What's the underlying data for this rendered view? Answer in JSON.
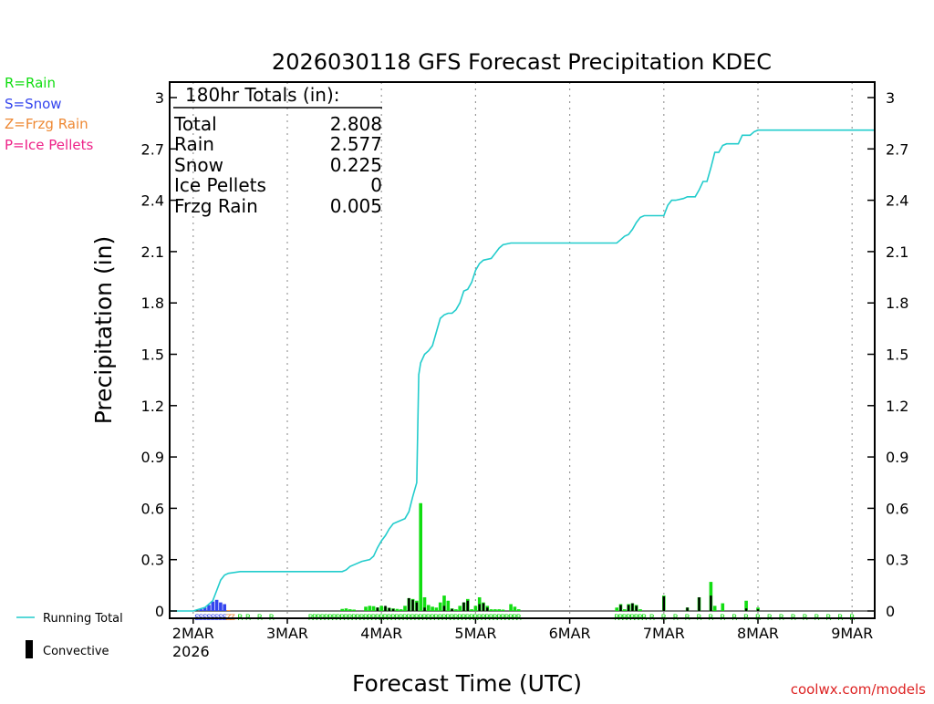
{
  "chart_data": {
    "type": "bar",
    "title": "2026030118 GFS Forecast Precipitation KDEC",
    "xlabel": "Forecast Time (UTC)",
    "ylabel": "Precipitation (in)",
    "ylim": [
      0,
      3
    ],
    "xlim_hours": [
      -6,
      180
    ],
    "yticks": [
      "0",
      "0.3",
      "0.6",
      "0.9",
      "1.2",
      "1.5",
      "1.8",
      "2.1",
      "2.4",
      "2.7",
      "3"
    ],
    "xticks": [
      {
        "label": "2MAR",
        "hour": 0
      },
      {
        "label": "3MAR",
        "hour": 24
      },
      {
        "label": "4MAR",
        "hour": 48
      },
      {
        "label": "5MAR",
        "hour": 72
      },
      {
        "label": "6MAR",
        "hour": 96
      },
      {
        "label": "7MAR",
        "hour": 120
      },
      {
        "label": "8MAR",
        "hour": 144
      },
      {
        "label": "9MAR",
        "hour": 168
      }
    ],
    "year_label": "2026",
    "legend_types": [
      {
        "text": "R=Rain",
        "color": "#11dd11"
      },
      {
        "text": "S=Snow",
        "color": "#3344ee"
      },
      {
        "text": "Z=Frzg Rain",
        "color": "#ee8833"
      },
      {
        "text": "P=Ice Pellets",
        "color": "#ee2288"
      }
    ],
    "legend_series": {
      "running_total": "Running Total",
      "convective": "Convective"
    },
    "totals": {
      "header": "180hr Totals (in):",
      "rows": [
        {
          "label": "Total",
          "value": "2.808"
        },
        {
          "label": "Rain",
          "value": "2.577"
        },
        {
          "label": "Snow",
          "value": "0.225"
        },
        {
          "label": "Ice Pellets",
          "value": "0"
        },
        {
          "label": "Frzg Rain",
          "value": "0.005"
        }
      ]
    },
    "credit": "coolwx.com/models",
    "running_total": {
      "name": "Running Total",
      "color": "#22cccc",
      "points": [
        [
          -6,
          0
        ],
        [
          0,
          0
        ],
        [
          3,
          0.02
        ],
        [
          5,
          0.06
        ],
        [
          6,
          0.12
        ],
        [
          7,
          0.18
        ],
        [
          8,
          0.21
        ],
        [
          9,
          0.22
        ],
        [
          12,
          0.23
        ],
        [
          21,
          0.23
        ],
        [
          30,
          0.23
        ],
        [
          38,
          0.23
        ],
        [
          39,
          0.24
        ],
        [
          40,
          0.26
        ],
        [
          41,
          0.27
        ],
        [
          43,
          0.29
        ],
        [
          45,
          0.3
        ],
        [
          46,
          0.32
        ],
        [
          47,
          0.37
        ],
        [
          48,
          0.41
        ],
        [
          49,
          0.44
        ],
        [
          50,
          0.48
        ],
        [
          51,
          0.51
        ],
        [
          52,
          0.52
        ],
        [
          54,
          0.54
        ],
        [
          55,
          0.58
        ],
        [
          56,
          0.67
        ],
        [
          57,
          0.75
        ],
        [
          57.5,
          1.38
        ],
        [
          58,
          1.45
        ],
        [
          59,
          1.5
        ],
        [
          60,
          1.52
        ],
        [
          61,
          1.55
        ],
        [
          62,
          1.63
        ],
        [
          63,
          1.71
        ],
        [
          64,
          1.73
        ],
        [
          65,
          1.74
        ],
        [
          66,
          1.74
        ],
        [
          67,
          1.76
        ],
        [
          68,
          1.8
        ],
        [
          69,
          1.87
        ],
        [
          70,
          1.88
        ],
        [
          71,
          1.92
        ],
        [
          72,
          1.99
        ],
        [
          73,
          2.03
        ],
        [
          74,
          2.05
        ],
        [
          76,
          2.06
        ],
        [
          77,
          2.09
        ],
        [
          78,
          2.12
        ],
        [
          79,
          2.14
        ],
        [
          81,
          2.15
        ],
        [
          95,
          2.15
        ],
        [
          105,
          2.15
        ],
        [
          108,
          2.15
        ],
        [
          109,
          2.17
        ],
        [
          110,
          2.19
        ],
        [
          111,
          2.2
        ],
        [
          112,
          2.23
        ],
        [
          113,
          2.27
        ],
        [
          114,
          2.3
        ],
        [
          115,
          2.31
        ],
        [
          120,
          2.31
        ],
        [
          121,
          2.37
        ],
        [
          122,
          2.4
        ],
        [
          123,
          2.4
        ],
        [
          125,
          2.41
        ],
        [
          126,
          2.42
        ],
        [
          128,
          2.42
        ],
        [
          129,
          2.46
        ],
        [
          130,
          2.51
        ],
        [
          131,
          2.51
        ],
        [
          132,
          2.59
        ],
        [
          133,
          2.68
        ],
        [
          134,
          2.68
        ],
        [
          135,
          2.72
        ],
        [
          136,
          2.73
        ],
        [
          139,
          2.73
        ],
        [
          140,
          2.78
        ],
        [
          141,
          2.78
        ],
        [
          142,
          2.78
        ],
        [
          143,
          2.8
        ],
        [
          144,
          2.81
        ],
        [
          155,
          2.81
        ],
        [
          168,
          2.81
        ],
        [
          174,
          2.81
        ]
      ]
    },
    "bars": [
      {
        "hour": 2,
        "value": 0.01,
        "type": "S"
      },
      {
        "hour": 3,
        "value": 0.02,
        "type": "S"
      },
      {
        "hour": 4,
        "value": 0.035,
        "type": "S"
      },
      {
        "hour": 5,
        "value": 0.055,
        "type": "S"
      },
      {
        "hour": 6,
        "value": 0.065,
        "type": "S"
      },
      {
        "hour": 7,
        "value": 0.05,
        "type": "S"
      },
      {
        "hour": 8,
        "value": 0.04,
        "type": "S"
      },
      {
        "hour": 9,
        "value": 0.005,
        "type": "Z"
      },
      {
        "hour": 38,
        "value": 0.012,
        "type": "R"
      },
      {
        "hour": 39,
        "value": 0.015,
        "type": "R"
      },
      {
        "hour": 40,
        "value": 0.01,
        "type": "R"
      },
      {
        "hour": 41,
        "value": 0.008,
        "type": "R"
      },
      {
        "hour": 44,
        "value": 0.025,
        "type": "R"
      },
      {
        "hour": 45,
        "value": 0.03,
        "type": "R"
      },
      {
        "hour": 46,
        "value": 0.028,
        "type": "R"
      },
      {
        "hour": 47,
        "value": 0.02,
        "type": "R"
      },
      {
        "hour": 48,
        "value": 0.03,
        "type": "R"
      },
      {
        "hour": 49,
        "value": 0.025,
        "type": "R"
      },
      {
        "hour": 50,
        "value": 0.018,
        "type": "R"
      },
      {
        "hour": 51,
        "value": 0.015,
        "type": "R"
      },
      {
        "hour": 52,
        "value": 0.012,
        "type": "R"
      },
      {
        "hour": 53,
        "value": 0.01,
        "type": "R"
      },
      {
        "hour": 54,
        "value": 0.03,
        "type": "R"
      },
      {
        "hour": 55,
        "value": 0.075,
        "type": "R"
      },
      {
        "hour": 56,
        "value": 0.07,
        "type": "R"
      },
      {
        "hour": 57,
        "value": 0.06,
        "type": "R"
      },
      {
        "hour": 58,
        "value": 0.63,
        "type": "R"
      },
      {
        "hour": 59,
        "value": 0.08,
        "type": "R"
      },
      {
        "hour": 60,
        "value": 0.035,
        "type": "R"
      },
      {
        "hour": 61,
        "value": 0.025,
        "type": "R"
      },
      {
        "hour": 62,
        "value": 0.02,
        "type": "R"
      },
      {
        "hour": 63,
        "value": 0.05,
        "type": "R"
      },
      {
        "hour": 64,
        "value": 0.09,
        "type": "R"
      },
      {
        "hour": 65,
        "value": 0.06,
        "type": "R"
      },
      {
        "hour": 66,
        "value": 0.015,
        "type": "R"
      },
      {
        "hour": 67,
        "value": 0.01,
        "type": "R"
      },
      {
        "hour": 68,
        "value": 0.03,
        "type": "R"
      },
      {
        "hour": 69,
        "value": 0.05,
        "type": "R"
      },
      {
        "hour": 70,
        "value": 0.07,
        "type": "R"
      },
      {
        "hour": 71,
        "value": 0.01,
        "type": "R"
      },
      {
        "hour": 72,
        "value": 0.03,
        "type": "R"
      },
      {
        "hour": 73,
        "value": 0.08,
        "type": "R"
      },
      {
        "hour": 74,
        "value": 0.05,
        "type": "R"
      },
      {
        "hour": 75,
        "value": 0.03,
        "type": "R"
      },
      {
        "hour": 76,
        "value": 0.01,
        "type": "R"
      },
      {
        "hour": 77,
        "value": 0.01,
        "type": "R"
      },
      {
        "hour": 78,
        "value": 0.01,
        "type": "R"
      },
      {
        "hour": 79,
        "value": 0.008,
        "type": "R"
      },
      {
        "hour": 81,
        "value": 0.04,
        "type": "R"
      },
      {
        "hour": 82,
        "value": 0.025,
        "type": "R"
      },
      {
        "hour": 83,
        "value": 0.01,
        "type": "R"
      },
      {
        "hour": 108,
        "value": 0.02,
        "type": "R"
      },
      {
        "hour": 109,
        "value": 0.04,
        "type": "R"
      },
      {
        "hour": 110,
        "value": 0.01,
        "type": "R"
      },
      {
        "hour": 111,
        "value": 0.04,
        "type": "R"
      },
      {
        "hour": 112,
        "value": 0.045,
        "type": "R"
      },
      {
        "hour": 113,
        "value": 0.035,
        "type": "R"
      },
      {
        "hour": 114,
        "value": 0.01,
        "type": "R"
      },
      {
        "hour": 120,
        "value": 0.09,
        "type": "R"
      },
      {
        "hour": 126,
        "value": 0.02,
        "type": "R"
      },
      {
        "hour": 129,
        "value": 0.08,
        "type": "R"
      },
      {
        "hour": 132,
        "value": 0.17,
        "type": "R"
      },
      {
        "hour": 133,
        "value": 0.03,
        "type": "R"
      },
      {
        "hour": 135,
        "value": 0.045,
        "type": "R"
      },
      {
        "hour": 141,
        "value": 0.06,
        "type": "R"
      },
      {
        "hour": 144,
        "value": 0.02,
        "type": "R"
      }
    ],
    "convective": [
      {
        "hour": 47,
        "value": 0.02
      },
      {
        "hour": 49,
        "value": 0.03
      },
      {
        "hour": 50,
        "value": 0.018
      },
      {
        "hour": 51,
        "value": 0.012
      },
      {
        "hour": 55,
        "value": 0.075
      },
      {
        "hour": 56,
        "value": 0.065
      },
      {
        "hour": 57,
        "value": 0.05
      },
      {
        "hour": 59,
        "value": 0.02
      },
      {
        "hour": 64,
        "value": 0.03
      },
      {
        "hour": 66,
        "value": 0.012
      },
      {
        "hour": 69,
        "value": 0.05
      },
      {
        "hour": 70,
        "value": 0.06
      },
      {
        "hour": 73,
        "value": 0.04
      },
      {
        "hour": 74,
        "value": 0.045
      },
      {
        "hour": 75,
        "value": 0.02
      },
      {
        "hour": 109,
        "value": 0.035
      },
      {
        "hour": 111,
        "value": 0.035
      },
      {
        "hour": 112,
        "value": 0.045
      },
      {
        "hour": 113,
        "value": 0.03
      },
      {
        "hour": 120,
        "value": 0.085
      },
      {
        "hour": 126,
        "value": 0.02
      },
      {
        "hour": 129,
        "value": 0.08
      },
      {
        "hour": 132,
        "value": 0.09
      },
      {
        "hour": 141,
        "value": 0.015
      },
      {
        "hour": 144,
        "value": 0.01
      }
    ],
    "type_markers": [
      {
        "hour": 1,
        "letter": "S"
      },
      {
        "hour": 2,
        "letter": "S"
      },
      {
        "hour": 3,
        "letter": "S"
      },
      {
        "hour": 4,
        "letter": "S"
      },
      {
        "hour": 5,
        "letter": "S"
      },
      {
        "hour": 6,
        "letter": "S"
      },
      {
        "hour": 7,
        "letter": "S"
      },
      {
        "hour": 8,
        "letter": "S"
      },
      {
        "hour": 9,
        "letter": "Z"
      },
      {
        "hour": 10,
        "letter": "Z"
      },
      {
        "hour": 12,
        "letter": "R"
      },
      {
        "hour": 14,
        "letter": "R"
      },
      {
        "hour": 17,
        "letter": "R"
      },
      {
        "hour": 20,
        "letter": "R"
      }
    ],
    "rain_marker_ranges": [
      [
        30,
        83,
        1
      ],
      [
        108,
        115,
        1
      ],
      [
        117,
        168,
        3
      ]
    ]
  }
}
